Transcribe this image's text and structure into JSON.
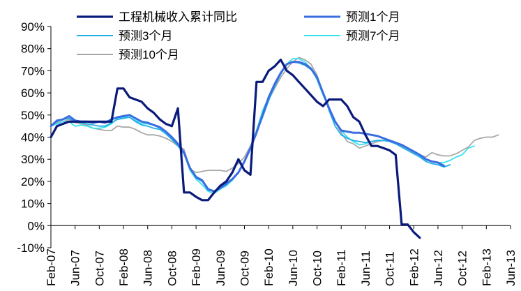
{
  "chart_data": {
    "type": "line",
    "title": "",
    "xlabel": "",
    "ylabel": "",
    "ylim": [
      -10,
      90
    ],
    "ytick_values": [
      -10,
      0,
      10,
      20,
      30,
      40,
      50,
      60,
      70,
      80,
      90
    ],
    "ytick_labels": [
      "-10%",
      "0%",
      "10%",
      "20%",
      "30%",
      "40%",
      "50%",
      "60%",
      "70%",
      "80%",
      "90%"
    ],
    "x_axis": {
      "start": "2007-02",
      "end": "2013-06",
      "tick_labels": [
        "Feb-07",
        "Jun-07",
        "Oct-07",
        "Feb-08",
        "Jun-08",
        "Oct-08",
        "Feb-09",
        "Jun-09",
        "Oct-09",
        "Feb-10",
        "Jun-10",
        "Oct-10",
        "Feb-11",
        "Jun-11",
        "Oct-11",
        "Feb-12",
        "Jun-12",
        "Oct-12",
        "Feb-13",
        "Jun-13"
      ],
      "tick_dates": [
        "2007-02",
        "2007-06",
        "2007-10",
        "2008-02",
        "2008-06",
        "2008-10",
        "2009-02",
        "2009-06",
        "2009-10",
        "2010-02",
        "2010-06",
        "2010-10",
        "2011-02",
        "2011-06",
        "2011-10",
        "2012-02",
        "2012-06",
        "2012-10",
        "2013-02",
        "2013-06"
      ]
    },
    "gridlines": false,
    "legend": {
      "position": "top",
      "columns": 2
    },
    "series": [
      {
        "name": "工程机械收入累计同比",
        "color": "#0a1a7a",
        "stroke_width": 3.2,
        "start": "2007-02",
        "values": [
          40,
          45,
          46,
          47,
          47,
          47,
          47,
          47,
          47,
          47,
          47,
          62,
          62,
          58,
          57,
          56,
          53,
          51,
          48,
          46,
          45,
          53,
          15,
          15,
          13,
          11.5,
          11.5,
          15,
          18,
          20,
          24,
          30,
          25,
          23,
          65,
          65,
          70,
          72,
          75,
          70,
          68,
          65,
          62,
          59,
          56,
          54,
          57,
          57,
          57,
          54,
          49,
          47,
          41,
          36,
          36,
          35,
          34,
          32,
          0.5,
          0.5,
          -3,
          -5.5
        ]
      },
      {
        "name": "预测1个月",
        "color": "#3a6ee0",
        "stroke_width": 3.0,
        "start": "2007-02",
        "values": [
          45,
          47.5,
          48,
          49.5,
          47.5,
          47,
          47,
          46.5,
          47,
          46.5,
          48,
          49,
          49.5,
          50,
          48.5,
          47,
          46.5,
          45.5,
          44.5,
          42.5,
          40,
          37,
          33,
          26,
          22,
          20.5,
          16.5,
          15.5,
          17,
          19,
          21,
          24,
          29,
          35,
          42,
          50,
          58,
          64,
          69,
          73,
          74,
          74,
          73,
          71,
          67,
          60,
          53,
          47,
          43,
          42.5,
          42,
          42,
          41.5,
          41,
          40.5,
          39.5,
          38.5,
          37.5,
          36.5,
          35,
          33.5,
          32,
          30,
          29,
          28.5,
          27
        ]
      },
      {
        "name": "预测3个月",
        "color": "#1faee8",
        "stroke_width": 1.8,
        "start": "2007-02",
        "values": [
          45,
          47,
          48,
          48.5,
          47,
          46.5,
          46,
          45.5,
          45,
          45,
          46.5,
          48,
          48.5,
          49,
          47,
          45.5,
          45,
          44,
          43.5,
          41.5,
          39,
          36,
          32.5,
          26,
          21.5,
          20,
          16,
          15.5,
          17,
          18.5,
          21,
          24,
          29,
          34.5,
          42,
          49,
          56.5,
          63,
          68.5,
          73,
          74,
          73.5,
          72.5,
          70.5,
          67,
          60,
          52,
          45,
          41,
          39.5,
          38.5,
          38,
          37.5,
          38,
          38.5,
          38.5,
          38,
          37,
          35.5,
          34,
          32.5,
          31,
          29,
          28,
          27.5,
          26.5,
          27.5
        ]
      },
      {
        "name": "预测7个月",
        "color": "#35e2ee",
        "stroke_width": 1.8,
        "start": "2007-02",
        "values": [
          45,
          46,
          47,
          47,
          45,
          45.5,
          45,
          44,
          44,
          44.5,
          46,
          48.5,
          49,
          49,
          47.5,
          46,
          46,
          45.5,
          44,
          41.5,
          39,
          36,
          32.5,
          25,
          21,
          18.5,
          15.5,
          14.5,
          16.5,
          18,
          20.5,
          24,
          29,
          35,
          43,
          52,
          58,
          64,
          69,
          73,
          75.5,
          75.5,
          74,
          71,
          66,
          59,
          53,
          47,
          43,
          40,
          38,
          36.5,
          37,
          38,
          38.5,
          38.5,
          38,
          37,
          35.5,
          34,
          32.5,
          31.5,
          30,
          29,
          28.5,
          28.5,
          29.5,
          31,
          32,
          35,
          36
        ]
      },
      {
        "name": "预测10个月",
        "color": "#a8a8a8",
        "stroke_width": 1.8,
        "start": "2007-02",
        "values": [
          45,
          46.5,
          47,
          48,
          46.5,
          46,
          45.5,
          44,
          43.5,
          43,
          43,
          45,
          44.5,
          44.5,
          43.5,
          42,
          41,
          41,
          40.5,
          39.5,
          38,
          36,
          34.5,
          25.5,
          24,
          24.5,
          25,
          25,
          25,
          24.5,
          26,
          28,
          31,
          36,
          43,
          51,
          57,
          62,
          67,
          71,
          74,
          76,
          75,
          73,
          68,
          60,
          52,
          47,
          42,
          38,
          37,
          35,
          36,
          37,
          38,
          38.5,
          38.5,
          37.5,
          36,
          34.5,
          33,
          32,
          31,
          33,
          32,
          31.5,
          31.5,
          32.5,
          34,
          35.5,
          38.5,
          39.5,
          40,
          40,
          41
        ]
      }
    ]
  }
}
